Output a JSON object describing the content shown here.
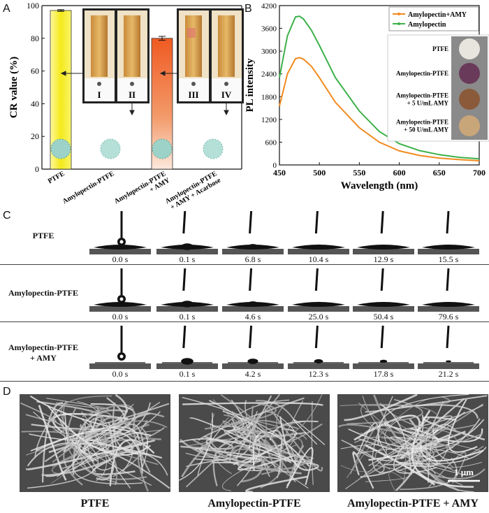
{
  "panels": {
    "a": "A",
    "b": "B",
    "c": "C",
    "d": "D"
  },
  "chart_data": [
    {
      "type": "bar",
      "ylabel": "CR value (%)",
      "ylim": [
        0,
        100
      ],
      "yticks": [
        0,
        20,
        40,
        60,
        80,
        100
      ],
      "categories": [
        "PTFE",
        "Amylopectin-PTFE",
        "Amylopectin-PTFE\n+ AMY",
        "Amylopectin-PTFE\n+ AMY + Acarbose"
      ],
      "values": [
        97,
        0,
        80,
        0
      ],
      "error": [
        0.5,
        0,
        1.2,
        0
      ],
      "tube_labels": [
        "I",
        "II",
        "III",
        "IV"
      ]
    },
    {
      "type": "line",
      "xlabel": "Wavelength (nm)",
      "ylabel": "PL intensity",
      "xlim": [
        450,
        700
      ],
      "ylim": [
        0,
        4200
      ],
      "xticks": [
        450,
        500,
        550,
        600,
        650,
        700
      ],
      "yticks": [
        0,
        600,
        1200,
        1800,
        2400,
        3000,
        3600,
        4200
      ],
      "legend_position": "top-right",
      "series": [
        {
          "name": "Amylopectin+AMY",
          "color": "#f28a1e",
          "x": [
            450,
            460,
            470,
            475,
            480,
            490,
            500,
            520,
            550,
            575,
            600,
            625,
            650,
            675,
            700
          ],
          "y": [
            1550,
            2400,
            2800,
            2830,
            2790,
            2600,
            2300,
            1650,
            980,
            600,
            370,
            250,
            180,
            140,
            110
          ]
        },
        {
          "name": "Amylopectin",
          "color": "#3db14a",
          "x": [
            450,
            460,
            470,
            475,
            480,
            490,
            500,
            520,
            550,
            575,
            600,
            625,
            650,
            675,
            700
          ],
          "y": [
            2300,
            3400,
            3900,
            3920,
            3850,
            3550,
            3150,
            2300,
            1420,
            880,
            560,
            380,
            270,
            200,
            160
          ]
        }
      ],
      "inset_labels": [
        "PTFE",
        "Amylopectin-PTFE",
        "Amylopectin-PTFE\n+ 5 U/mL AMY",
        "Amylopectin-PTFE\n+ 50 U/mL AMY"
      ]
    }
  ],
  "contact_angle": {
    "rows": [
      {
        "label": "PTFE",
        "times": [
          "0.0 s",
          "0.1 s",
          "6.8 s",
          "10.4 s",
          "12.9 s",
          "15.5 s"
        ]
      },
      {
        "label": "Amylopectin-PTFE",
        "times": [
          "0.0 s",
          "0.1 s",
          "4.6 s",
          "25.0 s",
          "50.4 s",
          "79.6 s"
        ]
      },
      {
        "label": "Amylopectin-PTFE\n+ AMY",
        "times": [
          "0.0 s",
          "0.1 s",
          "4.2 s",
          "12.3 s",
          "17.8 s",
          "21.2 s"
        ]
      }
    ]
  },
  "sem": {
    "captions": [
      "PTFE",
      "Amylopectin-PTFE",
      "Amylopectin-PTFE + AMY"
    ],
    "scale_bar": "1 μm"
  },
  "colors": {
    "yellow_bar": "#f4ea1a",
    "orange_bar": "#f06a2a",
    "green_line": "#3db14a",
    "orange_line": "#f28a1e"
  }
}
